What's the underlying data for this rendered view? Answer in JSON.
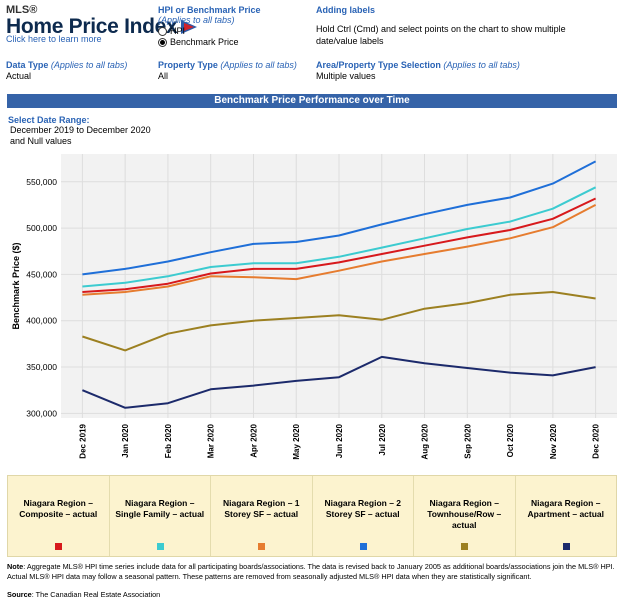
{
  "header": {
    "logo_small": "MLS®",
    "logo_title": "Home Price Index",
    "learn_link": "Click here to learn more"
  },
  "hpi_toggle": {
    "title": "HPI or Benchmark Price",
    "subtitle": "(Applies to all tabs)",
    "options": [
      {
        "label": "HPI",
        "selected": false
      },
      {
        "label": "Benchmark Price",
        "selected": true
      }
    ]
  },
  "adding_labels": {
    "title": "Adding labels",
    "text": "Hold Ctrl (Cmd) and select points on the chart to show multiple date/value labels"
  },
  "selectors": {
    "data_type": {
      "label": "Data Type",
      "note": "(Applies to all tabs)",
      "value": "Actual"
    },
    "property_type": {
      "label": "Property Type",
      "note": "(Applies to all tabs)",
      "value": "All"
    },
    "area_selection": {
      "label": "Area/Property Type Selection",
      "note": "(Applies to all tabs)",
      "value": "Multiple values"
    }
  },
  "banner_title": "Benchmark Price Performance over Time",
  "date_range": {
    "label": "Select Date Range:",
    "value_line1": "December 2019 to December 2020",
    "value_line2": "and Null values"
  },
  "chart_data": {
    "type": "line",
    "title": "",
    "xlabel": "",
    "ylabel": "Benchmark Price ($)",
    "ylim": [
      295000,
      580000
    ],
    "yticks": [
      300000,
      350000,
      400000,
      450000,
      500000,
      550000
    ],
    "ytick_labels": [
      "300,000",
      "350,000",
      "400,000",
      "450,000",
      "500,000",
      "550,000"
    ],
    "grid": true,
    "legend": "bottom",
    "categories": [
      "Dec 2019",
      "Jan 2020",
      "Feb 2020",
      "Mar 2020",
      "Apr 2020",
      "May 2020",
      "Jun 2020",
      "Jul 2020",
      "Aug 2020",
      "Sep 2020",
      "Oct 2020",
      "Nov 2020",
      "Dec 2020"
    ],
    "series": [
      {
        "name": "Niagara Region – Composite – actual",
        "color": "#d7191c",
        "values": [
          431000,
          434000,
          440000,
          451000,
          456000,
          456000,
          463000,
          472000,
          481000,
          490000,
          498000,
          510000,
          532000
        ]
      },
      {
        "name": "Niagara Region – Single Family – actual",
        "color": "#3ccbd0",
        "values": [
          437000,
          441000,
          448000,
          458000,
          462000,
          462000,
          469000,
          479000,
          489000,
          499000,
          507000,
          521000,
          544000
        ]
      },
      {
        "name": "Niagara Region – 1 Storey SF – actual",
        "color": "#e67c2f",
        "values": [
          428000,
          431000,
          437000,
          448000,
          447000,
          445000,
          454000,
          464000,
          472000,
          480000,
          489000,
          501000,
          525000
        ]
      },
      {
        "name": "Niagara Region – 2 Storey SF – actual",
        "color": "#1f6fd8",
        "values": [
          450000,
          456000,
          464000,
          474000,
          483000,
          485000,
          492000,
          504000,
          515000,
          525000,
          533000,
          548000,
          572000
        ]
      },
      {
        "name": "Niagara Region – Townhouse/Row – actual",
        "color": "#9c8021",
        "values": [
          383000,
          368000,
          386000,
          395000,
          400000,
          403000,
          406000,
          401000,
          413000,
          419000,
          428000,
          431000,
          424000
        ]
      },
      {
        "name": "Niagara Region – Apartment – actual",
        "color": "#1c2a6b",
        "values": [
          325000,
          306000,
          311000,
          326000,
          330000,
          335000,
          339000,
          361000,
          354000,
          349000,
          344000,
          341000,
          350000
        ]
      }
    ]
  },
  "legend_items": [
    {
      "label": "Niagara Region – Composite – actual",
      "color": "#d7191c"
    },
    {
      "label": "Niagara Region – Single Family – actual",
      "color": "#3ccbd0"
    },
    {
      "label": "Niagara Region – 1 Storey SF – actual",
      "color": "#e67c2f"
    },
    {
      "label": "Niagara Region – 2 Storey SF – actual",
      "color": "#1f6fd8"
    },
    {
      "label": "Niagara Region – Townhouse/Row – actual",
      "color": "#9c8021"
    },
    {
      "label": "Niagara Region – Apartment – actual",
      "color": "#1c2a6b"
    }
  ],
  "footer": {
    "note_label": "Note",
    "note_text": ": Aggregate MLS® HPI time series include data for all participating boards/associations. The data is revised back to January 2005 as additional boards/associations join the MLS® HPI. Actual MLS® HPI data may follow a seasonal pattern. These patterns are removed from seasonally adjusted MLS® HPI data when they are statistically significant.",
    "source_label": "Source",
    "source_text": ": The Canadian Real Estate Association"
  }
}
